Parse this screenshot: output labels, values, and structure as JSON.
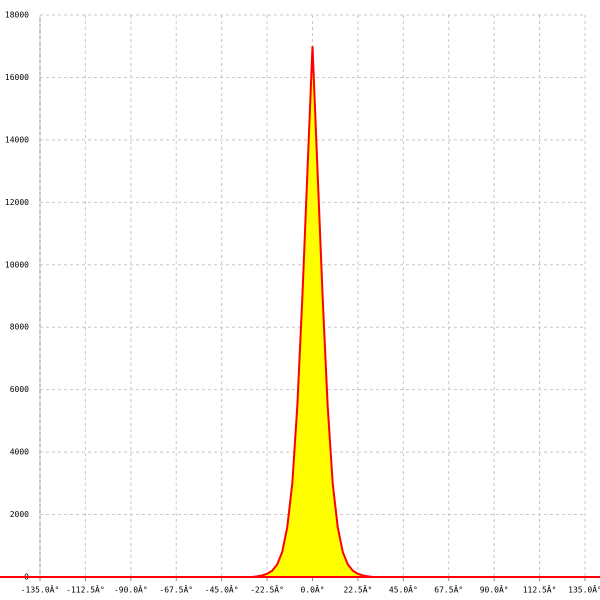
{
  "chart_data": {
    "type": "area",
    "x": [
      -135,
      -40,
      -35,
      -30,
      -27.5,
      -25,
      -22.5,
      -20,
      -17.5,
      -15,
      -12.5,
      -10,
      -7.5,
      -5,
      -2.5,
      0,
      2.5,
      5,
      7.5,
      10,
      12.5,
      15,
      17.5,
      20,
      22.5,
      25,
      27.5,
      30,
      35,
      40,
      135
    ],
    "values": [
      0,
      0,
      0,
      0,
      20,
      50,
      100,
      200,
      400,
      800,
      1600,
      3000,
      5500,
      9000,
      13000,
      17000,
      13000,
      9000,
      5500,
      3000,
      1600,
      800,
      400,
      200,
      100,
      50,
      20,
      0,
      0,
      0,
      0
    ],
    "color": "#ffff00",
    "line_color": "#ff0000",
    "xlim": [
      -135,
      135
    ],
    "xticks": [
      {
        "value": -135,
        "label": "-135.0Â°"
      },
      {
        "value": -112.5,
        "label": "-112.5Â°"
      },
      {
        "value": -90,
        "label": "-90.0Â°"
      },
      {
        "value": -67.5,
        "label": "-67.5Â°"
      },
      {
        "value": -45,
        "label": "-45.0Â°"
      },
      {
        "value": -22.5,
        "label": "-22.5Â°"
      },
      {
        "value": 0,
        "label": "0.0Â°"
      },
      {
        "value": 22.5,
        "label": "22.5Â°"
      },
      {
        "value": 45,
        "label": "45.0Â°"
      },
      {
        "value": 67.5,
        "label": "67.5Â°"
      },
      {
        "value": 90,
        "label": "90.0Â°"
      },
      {
        "value": 112.5,
        "label": "112.5Â°"
      },
      {
        "value": 135,
        "label": "135.0Â°"
      }
    ],
    "ylim": [
      0,
      18000
    ],
    "yticks": [
      0,
      2000,
      4000,
      6000,
      8000,
      10000,
      12000,
      14000,
      16000,
      18000
    ],
    "grid": true
  }
}
